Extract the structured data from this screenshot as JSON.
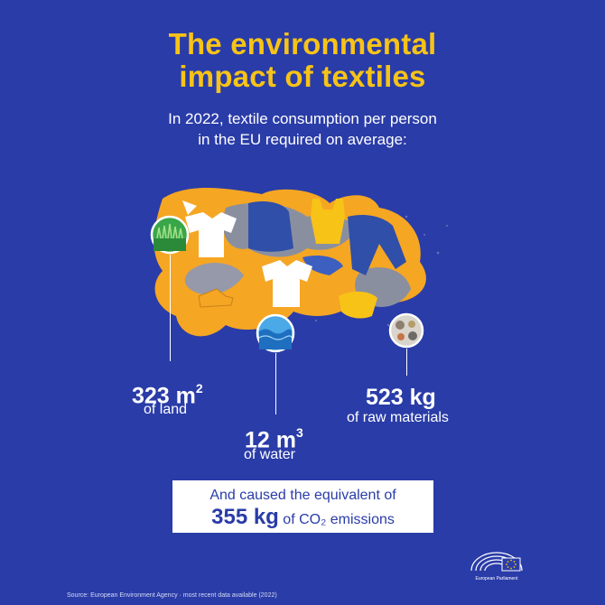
{
  "title": {
    "line1": "The environmental",
    "line2": "impact of textiles"
  },
  "subtitle": {
    "line1": "In 2022, textile consumption per person",
    "line2": "in the EU required on average:"
  },
  "stats": {
    "land": {
      "value": "323 m",
      "exp": "2",
      "label": "of land",
      "icon": "grass-field-icon"
    },
    "water": {
      "value": "12 m",
      "exp": "3",
      "label": "of water",
      "icon": "water-wave-icon"
    },
    "raw": {
      "value": "523 kg",
      "label": "of raw materials",
      "icon": "raw-materials-icon"
    }
  },
  "co2": {
    "line1": "And caused the equivalent of",
    "value": "355 kg",
    "suffix": "of CO₂ emissions"
  },
  "logo": {
    "text": "European Parliament",
    "icon": "parliament-hemicycle-icon"
  },
  "source": "Source: European Environment Agency · most recent data available (2022)",
  "colors": {
    "background": "#2a3ca8",
    "title": "#f7c317",
    "orange": "#f5a623",
    "grey": "#8a8fa0",
    "denim": "#2f4fa8",
    "white": "#ffffff"
  }
}
